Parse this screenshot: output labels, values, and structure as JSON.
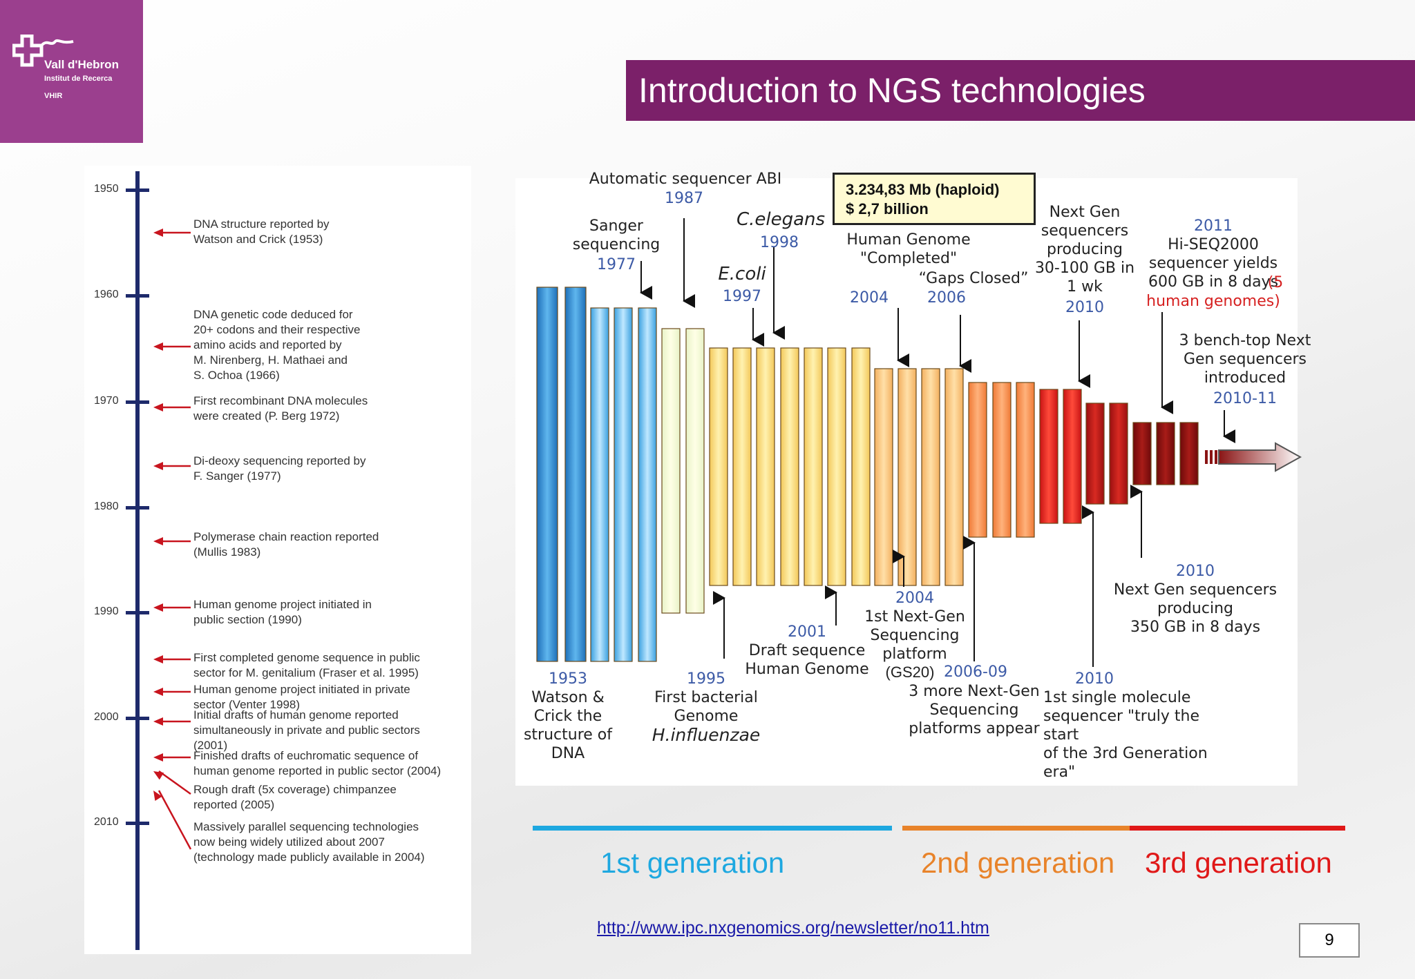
{
  "logo": {
    "name": "Vall d'Hebron",
    "subtitle": "Institut de Recerca",
    "abbr": "VHIR"
  },
  "title": "Introduction to NGS technologies",
  "timeline": {
    "decades": [
      "1950",
      "1960",
      "1970",
      "1980",
      "1990",
      "2000",
      "2010"
    ],
    "events": [
      "DNA structure reported by\nWatson and Crick (1953)",
      "DNA genetic code deduced for\n20+ codons and their respective\namino acids and reported by\nM. Nirenberg, H. Mathaei and\nS. Ochoa (1966)",
      "First recombinant DNA molecules\nwere created (P. Berg 1972)",
      "Di-deoxy sequencing reported by\nF. Sanger (1977)",
      "Polymerase chain reaction reported\n(Mullis 1983)",
      "Human genome project initiated in\npublic section (1990)",
      "First completed genome sequence in public\nsector for M. genitalium (Fraser et al. 1995)",
      "Human genome project initiated in private\nsector (Venter 1998)",
      "Initial drafts of human genome reported\nsimultaneously in private and public sectors\n(2001)",
      "Finished drafts of euchromatic sequence of\nhuman genome reported in public sector (2004)",
      "Rough draft (5x coverage) chimpanzee\nreported (2005)",
      "Massively parallel sequencing technologies\nnow being widely utilized about 2007\n(technology made publicly available in 2004)"
    ]
  },
  "chart": {
    "info_box": {
      "line1": "3.234,83 Mb (haploid)",
      "line2": "$ 2,7 billion"
    },
    "labels": {
      "abi_title": "Automatic sequencer ABI",
      "abi_year": "1987",
      "sanger": "Sanger\nsequencing",
      "sanger_year": "1977",
      "celegans": "C.elegans",
      "celegans_year": "1998",
      "ecoli": "E.coli",
      "ecoli_year": "1997",
      "hg_completed": "Human Genome\n\"Completed\"",
      "hg_completed_year": "2004",
      "gaps_closed": "“Gaps Closed”",
      "gaps_closed_year": "2006",
      "nextgen_30": "Next Gen\nsequencers\nproducing\n30-100 GB in\n1 wk",
      "nextgen_30_year": "2010",
      "hiseq_year": "2011",
      "hiseq": "Hi-SEQ2000\nsequencer yields\n600 GB in 8 days",
      "hiseq_red1": "(5",
      "hiseq_red2": "human genomes)",
      "benchtop": "3 bench-top Next\nGen sequencers\nintroduced",
      "benchtop_year": "2010-11",
      "nextgen_350_year": "2010",
      "nextgen_350": "Next Gen sequencers\nproducing\n350 GB in 8 days",
      "ng2004_year": "2004",
      "ng2004": "1st Next-Gen\nSequencing\nplatform",
      "gs20": "(GS20)",
      "draft_year": "2001",
      "draft": "Draft sequence\nHuman Genome",
      "more_ng_year": "2006-09",
      "more_ng": "3 more Next-Gen\nSequencing\nplatforms appear",
      "single_mol_year": "2010",
      "single_mol": "1st single molecule\nsequencer \"truly the start\nof the 3rd Generation era\"",
      "watson_year": "1953",
      "watson": "Watson &\nCrick the\nstructure of\nDNA",
      "first_bact_year": "1995",
      "first_bact": "First bacterial\nGenome",
      "hinfluenzae": "H.influenzae"
    }
  },
  "generations": {
    "first": "1st generation",
    "first_color": "#1ea8e0",
    "second": "2nd generation",
    "second_color": "#e8832a",
    "third": "3rd generation",
    "third_color": "#e01818"
  },
  "link": "http://www.ipc.nxgenomics.org/newsletter/no11.htm",
  "page_number": "9"
}
